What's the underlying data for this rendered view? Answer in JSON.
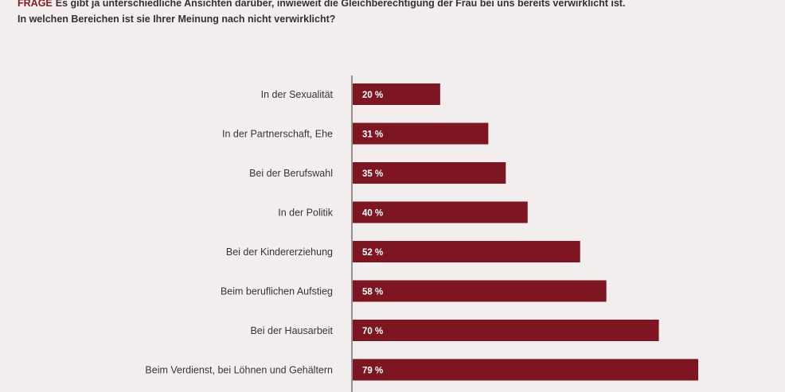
{
  "question": {
    "prefix": "FRAGE",
    "line1": "Es gibt ja unterschiedliche Ansichten darüber, inwieweit die Gleichberechtigung der Frau bei uns bereits verwirklicht ist.",
    "line2": "In welchen Bereichen ist sie Ihrer Meinung nach nicht verwirklicht?"
  },
  "colors": {
    "bar": "#7d1620",
    "axis": "#3a3334",
    "background": "#f3eeee"
  },
  "chart_data": {
    "type": "bar",
    "orientation": "horizontal",
    "categories": [
      "In der Sexualität",
      "In der Partnerschaft, Ehe",
      "Bei der Berufswahl",
      "In der Politik",
      "Bei der Kindererziehung",
      "Beim beruflichen Aufstieg",
      "Bei der Hausarbeit",
      "Beim Verdienst, bei Löhnen und Gehältern"
    ],
    "values": [
      20,
      31,
      35,
      40,
      52,
      58,
      70,
      79
    ],
    "value_labels": [
      "20 %",
      "31 %",
      "35 %",
      "40 %",
      "52 %",
      "58 %",
      "70 %",
      "79 %"
    ],
    "unit": "%",
    "xlim": [
      0,
      79
    ],
    "grid": false
  }
}
